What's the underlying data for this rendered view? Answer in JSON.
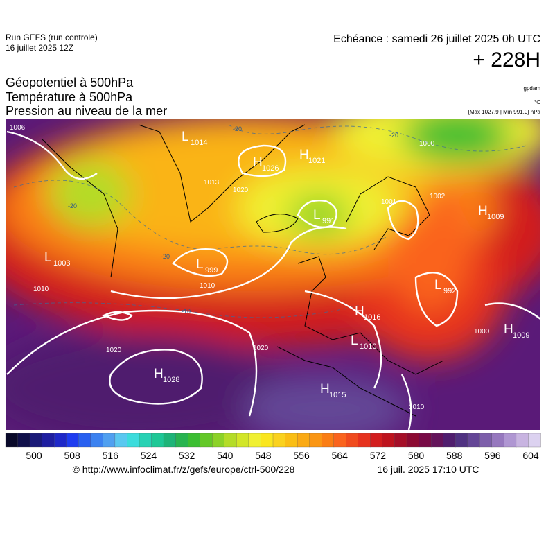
{
  "header": {
    "run": "Run GEFS (run controle)",
    "run_date": "16 juillet 2025 12Z",
    "echeance": "Echéance : samedi 26 juillet 2025 0h UTC",
    "lead": "+ 228H"
  },
  "titles": [
    "Géopotentiel à 500hPa",
    "Température à 500hPa",
    "Pression au niveau de la mer"
  ],
  "units": [
    "gpdam",
    "°C",
    "[Max 1027.9 | Min 991.0] hPa"
  ],
  "systems": [
    {
      "kind": "L",
      "value": 1014
    },
    {
      "kind": "H",
      "value": 1026
    },
    {
      "kind": "H",
      "value": 1021
    },
    {
      "kind": "L",
      "value": 991
    },
    {
      "kind": "L",
      "value": 1003
    },
    {
      "kind": "L",
      "value": 999
    },
    {
      "kind": "H",
      "value": 1009
    },
    {
      "kind": "L",
      "value": 992
    },
    {
      "kind": "H",
      "value": 1016
    },
    {
      "kind": "L",
      "value": 1010
    },
    {
      "kind": "H",
      "value": 1009
    },
    {
      "kind": "H",
      "value": 1028
    },
    {
      "kind": "H",
      "value": 1015
    }
  ],
  "isobar_labels": [
    1006,
    1013,
    1020,
    1010,
    1010,
    1001,
    1002,
    1000,
    1020,
    1020,
    1010,
    1000
  ],
  "temperature_labels": [
    -20,
    -20,
    -20,
    -20,
    -10
  ],
  "colorbar": {
    "colors": [
      "#0a0a2a",
      "#10104a",
      "#1a1a78",
      "#1e1ea0",
      "#1e28c8",
      "#1e3cf0",
      "#2860f0",
      "#3c82f0",
      "#50a0f0",
      "#5ac8f0",
      "#3cdcdc",
      "#28d2b4",
      "#1ec896",
      "#1eb478",
      "#28b450",
      "#3cbe32",
      "#64c828",
      "#8cd228",
      "#b4dc28",
      "#d2e628",
      "#f0f032",
      "#fae61e",
      "#fad21e",
      "#fabe14",
      "#faaa14",
      "#fa9614",
      "#fa7d14",
      "#fa641e",
      "#f04b1e",
      "#e6321e",
      "#d21e1e",
      "#be141e",
      "#a50f28",
      "#8c0a32",
      "#780a46",
      "#64145a",
      "#501e6e",
      "#503282",
      "#644696",
      "#7d5faa",
      "#9678be",
      "#af96d2",
      "#c8b4e1",
      "#dcd2f0"
    ],
    "ticks": [
      500,
      508,
      516,
      524,
      532,
      540,
      548,
      556,
      564,
      572,
      580,
      588,
      596,
      604
    ]
  },
  "footer": {
    "url": "© http://www.infoclimat.fr/z/gefs/europe/ctrl-500/228",
    "generated": "16 juil. 2025 17:10 UTC"
  }
}
